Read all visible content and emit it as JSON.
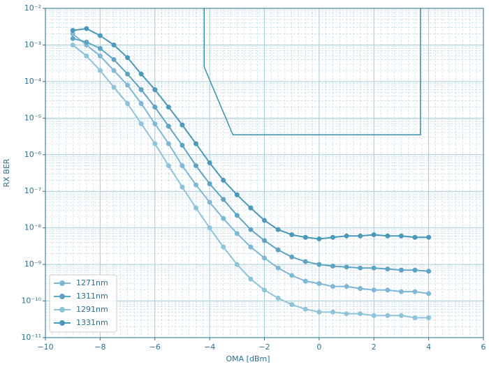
{
  "chart_data": {
    "type": "line",
    "xlabel": "OMA [dBm]",
    "ylabel": "RX BER",
    "log_y": true,
    "grid": true,
    "legend": "lower left",
    "xlim": [
      -10,
      6
    ],
    "ylim": [
      1e-11,
      0.01
    ],
    "xticks": [
      {
        "value": -10,
        "label": "−10"
      },
      {
        "value": -8,
        "label": "−8"
      },
      {
        "value": -6,
        "label": "−6"
      },
      {
        "value": -4,
        "label": "−4"
      },
      {
        "value": -2,
        "label": "−2"
      },
      0,
      2,
      4,
      6
    ],
    "yticks": [
      {
        "value": 1e-11,
        "label": "10⁻¹¹"
      },
      {
        "value": 1e-10,
        "label": "10⁻¹⁰"
      },
      {
        "value": 1e-09,
        "label": "10⁻⁹"
      },
      {
        "value": 1e-08,
        "label": "10⁻⁸"
      },
      {
        "value": 1e-07,
        "label": "10⁻⁷"
      },
      {
        "value": 1e-06,
        "label": "10⁻⁶"
      },
      {
        "value": 1e-05,
        "label": "10⁻⁵"
      },
      {
        "value": 0.0001,
        "label": "10⁻⁴"
      },
      {
        "value": 0.001,
        "label": "10⁻³"
      },
      {
        "value": 0.01,
        "label": "10⁻²"
      }
    ],
    "x": [
      -9,
      -8.5,
      -8,
      -7.5,
      -7,
      -6.5,
      -6,
      -5.5,
      -5,
      -4.5,
      -4,
      -3.5,
      -3,
      -2.5,
      -2,
      -1.5,
      -1,
      -0.5,
      0,
      0.5,
      1,
      1.5,
      2,
      2.5,
      3,
      3.5,
      4
    ],
    "series": [
      {
        "name": "1271nm",
        "color": "#7fb8d4",
        "values": [
          0.002,
          0.001,
          0.0005,
          0.0002,
          8e-05,
          2.5e-05,
          7e-06,
          2e-06,
          5e-07,
          1.5e-07,
          5e-08,
          1.8e-08,
          7e-09,
          3e-09,
          1.5e-09,
          8e-10,
          5e-10,
          3.5e-10,
          3e-10,
          2.5e-10,
          2.5e-10,
          2.2e-10,
          2e-10,
          2e-10,
          1.8e-10,
          1.8e-10,
          1.6e-10
        ]
      },
      {
        "name": "1311nm",
        "color": "#5fa3c4",
        "values": [
          0.0015,
          0.0012,
          0.0008,
          0.0004,
          0.00016,
          6e-05,
          2e-05,
          6e-06,
          1.8e-06,
          5e-07,
          1.6e-07,
          6e-08,
          2.2e-08,
          9e-09,
          4.5e-09,
          2.5e-09,
          1.6e-09,
          1.2e-09,
          1e-09,
          9e-10,
          8.5e-10,
          8e-10,
          8e-10,
          7.5e-10,
          7e-10,
          7e-10,
          6.5e-10
        ]
      },
      {
        "name": "1291nm",
        "color": "#8ec3da",
        "values": [
          0.001,
          0.0005,
          0.0002,
          7e-05,
          2.5e-05,
          7e-06,
          2e-06,
          5e-07,
          1.3e-07,
          3.5e-08,
          1e-08,
          3e-09,
          1e-09,
          4e-10,
          2e-10,
          1.2e-10,
          8e-11,
          6e-11,
          5e-11,
          5e-11,
          4.5e-11,
          4.5e-11,
          4e-11,
          4e-11,
          4e-11,
          3.5e-11,
          3.5e-11
        ]
      },
      {
        "name": "1331nm",
        "color": "#4a98ba",
        "values": [
          0.0025,
          0.0028,
          0.0018,
          0.001,
          0.00045,
          0.00016,
          6e-05,
          2e-05,
          6.5e-06,
          2e-06,
          6e-07,
          2e-07,
          8e-08,
          3.5e-08,
          1.6e-08,
          9e-09,
          6.5e-09,
          5.5e-09,
          5e-09,
          5.5e-09,
          6e-09,
          6e-09,
          6.5e-09,
          6e-09,
          6e-09,
          5.5e-09,
          5.5e-09
        ]
      }
    ],
    "mask": {
      "color": "#3a8fae",
      "x": [
        -4.2,
        -4.2,
        -3.15,
        3.7,
        3.7
      ],
      "y": [
        0.01,
        0.00025,
        3.5e-06,
        3.5e-06,
        0.01
      ]
    }
  }
}
